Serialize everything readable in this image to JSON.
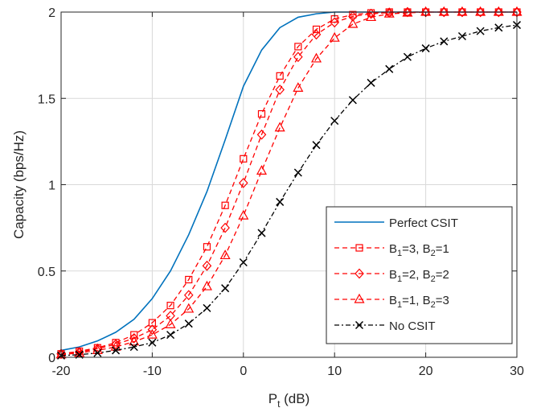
{
  "chart_data": {
    "type": "line",
    "title": "",
    "xlabel": {
      "main": "P",
      "sub": "t",
      "rest": " (dB)"
    },
    "ylabel": "Capacity (bps/Hz)",
    "xlim": [
      -20,
      30
    ],
    "ylim": [
      0,
      2
    ],
    "xticks": [
      -20,
      -10,
      0,
      10,
      20,
      30
    ],
    "yticks": [
      0,
      0.5,
      1,
      1.5,
      2
    ],
    "grid": true,
    "legend_position": "bottom-right",
    "x": [
      -20,
      -18,
      -16,
      -14,
      -12,
      -10,
      -8,
      -6,
      -4,
      -2,
      0,
      2,
      4,
      6,
      8,
      10,
      12,
      14,
      16,
      18,
      20,
      22,
      24,
      26,
      28,
      30
    ],
    "series": [
      {
        "name": "Perfect CSIT",
        "legend": [
          {
            "t": "Perfect CSIT"
          }
        ],
        "color": "#0072BD",
        "dash": "solid",
        "marker": "none",
        "values": [
          0.04,
          0.06,
          0.095,
          0.145,
          0.22,
          0.34,
          0.5,
          0.71,
          0.96,
          1.26,
          1.57,
          1.78,
          1.91,
          1.97,
          1.99,
          2.0,
          2.0,
          2.0,
          2.0,
          2.0,
          2.0,
          2.0,
          2.0,
          2.0,
          2.0,
          2.0
        ]
      },
      {
        "name": "B1=3, B2=1",
        "legend": [
          {
            "t": "B"
          },
          {
            "t": "1",
            "sub": true
          },
          {
            "t": "=3, B"
          },
          {
            "t": "2",
            "sub": true
          },
          {
            "t": "=1"
          }
        ],
        "color": "#FF0000",
        "dash": "dashed",
        "marker": "square",
        "values": [
          0.02,
          0.035,
          0.055,
          0.085,
          0.13,
          0.2,
          0.3,
          0.45,
          0.64,
          0.88,
          1.15,
          1.41,
          1.63,
          1.8,
          1.9,
          1.96,
          1.985,
          1.995,
          2.0,
          2.0,
          2.0,
          2.0,
          2.0,
          2.0,
          2.0,
          2.0
        ]
      },
      {
        "name": "B1=2, B2=2",
        "legend": [
          {
            "t": "B"
          },
          {
            "t": "1",
            "sub": true
          },
          {
            "t": "=2, B"
          },
          {
            "t": "2",
            "sub": true
          },
          {
            "t": "=2"
          }
        ],
        "color": "#FF0000",
        "dash": "dashed",
        "marker": "diamond",
        "values": [
          0.02,
          0.03,
          0.05,
          0.075,
          0.11,
          0.16,
          0.24,
          0.36,
          0.53,
          0.75,
          1.01,
          1.29,
          1.55,
          1.74,
          1.87,
          1.94,
          1.975,
          1.99,
          1.997,
          2.0,
          2.0,
          2.0,
          2.0,
          2.0,
          2.0,
          2.0
        ]
      },
      {
        "name": "B1=1, B2=3",
        "legend": [
          {
            "t": "B"
          },
          {
            "t": "1",
            "sub": true
          },
          {
            "t": "=1, B"
          },
          {
            "t": "2",
            "sub": true
          },
          {
            "t": "=3"
          }
        ],
        "color": "#FF0000",
        "dash": "dashed",
        "marker": "triangle",
        "values": [
          0.015,
          0.025,
          0.04,
          0.06,
          0.09,
          0.13,
          0.19,
          0.28,
          0.41,
          0.59,
          0.82,
          1.08,
          1.33,
          1.56,
          1.73,
          1.85,
          1.93,
          1.97,
          1.99,
          1.995,
          2.0,
          2.0,
          2.0,
          2.0,
          2.0,
          2.0
        ]
      },
      {
        "name": "No CSIT",
        "legend": [
          {
            "t": "No CSIT"
          }
        ],
        "color": "#000000",
        "dash": "dashdot",
        "marker": "x",
        "values": [
          0.01,
          0.015,
          0.025,
          0.04,
          0.06,
          0.085,
          0.13,
          0.195,
          0.285,
          0.4,
          0.55,
          0.72,
          0.9,
          1.07,
          1.23,
          1.37,
          1.49,
          1.59,
          1.67,
          1.74,
          1.79,
          1.83,
          1.86,
          1.89,
          1.91,
          1.925
        ]
      }
    ]
  }
}
